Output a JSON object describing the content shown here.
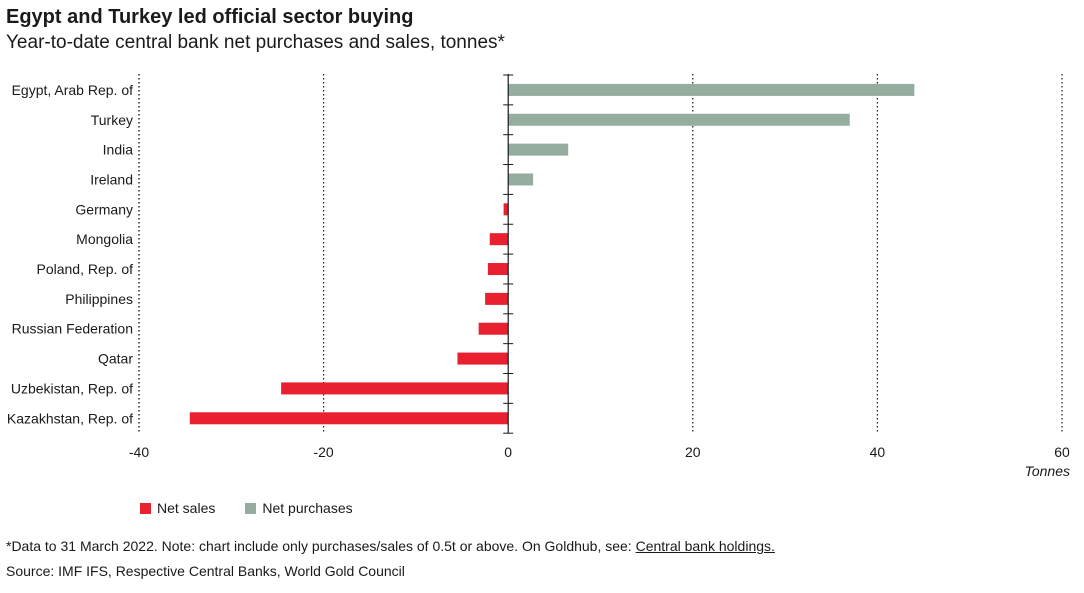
{
  "title": "Egypt and Turkey led official sector buying",
  "subtitle": "Year-to-date central bank net purchases and sales, tonnes*",
  "colors": {
    "sales": "#e8202f",
    "purchases": "#95ad9f",
    "axis": "#1a1a1a",
    "grid": "#1a1a1a"
  },
  "legend": {
    "sales_label": "Net sales",
    "purchases_label": "Net purchases"
  },
  "footer": {
    "note_text": "*Data to 31 March 2022. Note: chart include only purchases/sales of 0.5t or above. On Goldhub, see: ",
    "note_link": "Central bank holdings.",
    "source": "Source: IMF IFS, Respective Central Banks, World Gold Council"
  },
  "chart_data": {
    "type": "bar",
    "orientation": "horizontal",
    "categories": [
      "Egypt, Arab Rep. of",
      "Turkey",
      "India",
      "Ireland",
      "Germany",
      "Mongolia",
      "Poland, Rep. of",
      "Philippines",
      "Russian Federation",
      "Qatar",
      "Uzbekistan, Rep. of",
      "Kazakhstan, Rep. of"
    ],
    "values": [
      44.0,
      37.0,
      6.5,
      2.7,
      -0.5,
      -2.0,
      -2.2,
      -2.5,
      -3.2,
      -5.5,
      -24.6,
      -34.5
    ],
    "xlim": [
      -40,
      60
    ],
    "xticks": [
      -40,
      -20,
      0,
      20,
      40,
      60
    ],
    "xlabel": "Tonnes",
    "grid": "vertical dotted"
  }
}
